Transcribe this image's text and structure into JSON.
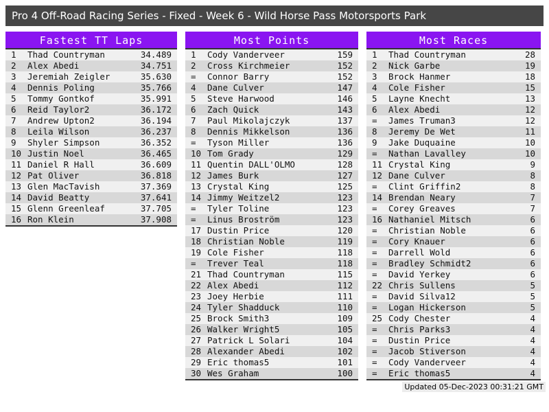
{
  "titlebar": {
    "title": "Pro 4 Off-Road Racing Series - Fixed - Week 6 - Wild Horse Pass Motorsports Park"
  },
  "colors": {
    "accent": "#8A15F1",
    "titlebar_bg": "#464646",
    "row_odd": "#f0f0f0",
    "row_even": "#d8d8d8",
    "table_border": "#333333"
  },
  "tables": [
    {
      "id": "fastest-tt-laps",
      "title": "Fastest TT Laps",
      "rows": [
        {
          "rank": "1",
          "name": "Thad Countryman",
          "value": "34.489"
        },
        {
          "rank": "2",
          "name": "Alex Abedi",
          "value": "34.751"
        },
        {
          "rank": "3",
          "name": "Jeremiah Zeigler",
          "value": "35.630"
        },
        {
          "rank": "4",
          "name": "Dennis Poling",
          "value": "35.766"
        },
        {
          "rank": "5",
          "name": "Tommy Gontkof",
          "value": "35.991"
        },
        {
          "rank": "6",
          "name": "Reid Taylor2",
          "value": "36.172"
        },
        {
          "rank": "7",
          "name": "Andrew Upton2",
          "value": "36.194"
        },
        {
          "rank": "8",
          "name": "Leila Wilson",
          "value": "36.237"
        },
        {
          "rank": "9",
          "name": "Shyler Simpson",
          "value": "36.352"
        },
        {
          "rank": "10",
          "name": "Justin Noel",
          "value": "36.465"
        },
        {
          "rank": "11",
          "name": "Daniel R Hall",
          "value": "36.609"
        },
        {
          "rank": "12",
          "name": "Pat Oliver",
          "value": "36.818"
        },
        {
          "rank": "13",
          "name": "Glen MacTavish",
          "value": "37.369"
        },
        {
          "rank": "14",
          "name": "David Beatty",
          "value": "37.641"
        },
        {
          "rank": "15",
          "name": "Glenn Greenleaf",
          "value": "37.705"
        },
        {
          "rank": "16",
          "name": "Ron Klein",
          "value": "37.908"
        }
      ]
    },
    {
      "id": "most-points",
      "title": "Most Points",
      "rows": [
        {
          "rank": "1",
          "name": "Cody Vanderveer",
          "value": "159"
        },
        {
          "rank": "2",
          "name": "Cross Kirchmeier",
          "value": "152"
        },
        {
          "rank": "=",
          "name": "Connor Barry",
          "value": "152"
        },
        {
          "rank": "4",
          "name": "Dane Culver",
          "value": "147"
        },
        {
          "rank": "5",
          "name": "Steve Harwood",
          "value": "146"
        },
        {
          "rank": "6",
          "name": "Zach Quick",
          "value": "143"
        },
        {
          "rank": "7",
          "name": "Paul Mikolajczyk",
          "value": "137"
        },
        {
          "rank": "8",
          "name": "Dennis Mikkelson",
          "value": "136"
        },
        {
          "rank": "=",
          "name": "Tyson Miller",
          "value": "136"
        },
        {
          "rank": "10",
          "name": "Tom Grady",
          "value": "129"
        },
        {
          "rank": "11",
          "name": "Quentin DALL'OLMO",
          "value": "128"
        },
        {
          "rank": "12",
          "name": "James Burk",
          "value": "127"
        },
        {
          "rank": "13",
          "name": "Crystal King",
          "value": "125"
        },
        {
          "rank": "14",
          "name": "Jimmy Weitzel2",
          "value": "123"
        },
        {
          "rank": "=",
          "name": "Tyler Toline",
          "value": "123"
        },
        {
          "rank": "=",
          "name": "Linus Broström",
          "value": "123"
        },
        {
          "rank": "17",
          "name": "Dustin Price",
          "value": "120"
        },
        {
          "rank": "18",
          "name": "Christian Noble",
          "value": "119"
        },
        {
          "rank": "19",
          "name": "Cole Fisher",
          "value": "118"
        },
        {
          "rank": "=",
          "name": "Trever Teal",
          "value": "118"
        },
        {
          "rank": "21",
          "name": "Thad Countryman",
          "value": "115"
        },
        {
          "rank": "22",
          "name": "Alex Abedi",
          "value": "112"
        },
        {
          "rank": "23",
          "name": "Joey Herbie",
          "value": "111"
        },
        {
          "rank": "24",
          "name": "Tyler Shadduck",
          "value": "110"
        },
        {
          "rank": "25",
          "name": "Brock Smith3",
          "value": "109"
        },
        {
          "rank": "26",
          "name": "Walker Wright5",
          "value": "105"
        },
        {
          "rank": "27",
          "name": "Patrick L Solari",
          "value": "104"
        },
        {
          "rank": "28",
          "name": "Alexander Abedi",
          "value": "102"
        },
        {
          "rank": "29",
          "name": "Eric thomas5",
          "value": "101"
        },
        {
          "rank": "30",
          "name": "Wes Graham",
          "value": "100"
        }
      ]
    },
    {
      "id": "most-races",
      "title": "Most Races",
      "rows": [
        {
          "rank": "1",
          "name": "Thad Countryman",
          "value": "28"
        },
        {
          "rank": "2",
          "name": "Nick Garbe",
          "value": "19"
        },
        {
          "rank": "3",
          "name": "Brock Hanmer",
          "value": "18"
        },
        {
          "rank": "4",
          "name": "Cole Fisher",
          "value": "15"
        },
        {
          "rank": "5",
          "name": "Layne Knecht",
          "value": "13"
        },
        {
          "rank": "6",
          "name": "Alex Abedi",
          "value": "12"
        },
        {
          "rank": "=",
          "name": "James Truman3",
          "value": "12"
        },
        {
          "rank": "8",
          "name": "Jeremy De Wet",
          "value": "11"
        },
        {
          "rank": "9",
          "name": "Jake Duquaine",
          "value": "10"
        },
        {
          "rank": "=",
          "name": "Nathan Lavalley",
          "value": "10"
        },
        {
          "rank": "11",
          "name": "Crystal King",
          "value": "9"
        },
        {
          "rank": "12",
          "name": "Dane Culver",
          "value": "8"
        },
        {
          "rank": "=",
          "name": "Clint Griffin2",
          "value": "8"
        },
        {
          "rank": "14",
          "name": "Brendan Neary",
          "value": "7"
        },
        {
          "rank": "=",
          "name": "Corey Greaves",
          "value": "7"
        },
        {
          "rank": "16",
          "name": "Nathaniel Mitsch",
          "value": "6"
        },
        {
          "rank": "=",
          "name": "Christian Noble",
          "value": "6"
        },
        {
          "rank": "=",
          "name": "Cory Knauer",
          "value": "6"
        },
        {
          "rank": "=",
          "name": "Darrell Wold",
          "value": "6"
        },
        {
          "rank": "=",
          "name": "Bradley Schmidt2",
          "value": "6"
        },
        {
          "rank": "=",
          "name": "David Yerkey",
          "value": "6"
        },
        {
          "rank": "22",
          "name": "Chris Sullens",
          "value": "5"
        },
        {
          "rank": "=",
          "name": "David Silva12",
          "value": "5"
        },
        {
          "rank": "=",
          "name": "Logan Hickerson",
          "value": "5"
        },
        {
          "rank": "25",
          "name": "Cody Chester",
          "value": "4"
        },
        {
          "rank": "=",
          "name": "Chris Parks3",
          "value": "4"
        },
        {
          "rank": "=",
          "name": "Dustin Price",
          "value": "4"
        },
        {
          "rank": "=",
          "name": "Jacob Stiverson",
          "value": "4"
        },
        {
          "rank": "=",
          "name": "Cody Vanderveer",
          "value": "4"
        },
        {
          "rank": "=",
          "name": "Eric thomas5",
          "value": "4"
        }
      ]
    }
  ],
  "footer": {
    "updated": "Updated 05-Dec-2023 00:31:21 GMT"
  }
}
